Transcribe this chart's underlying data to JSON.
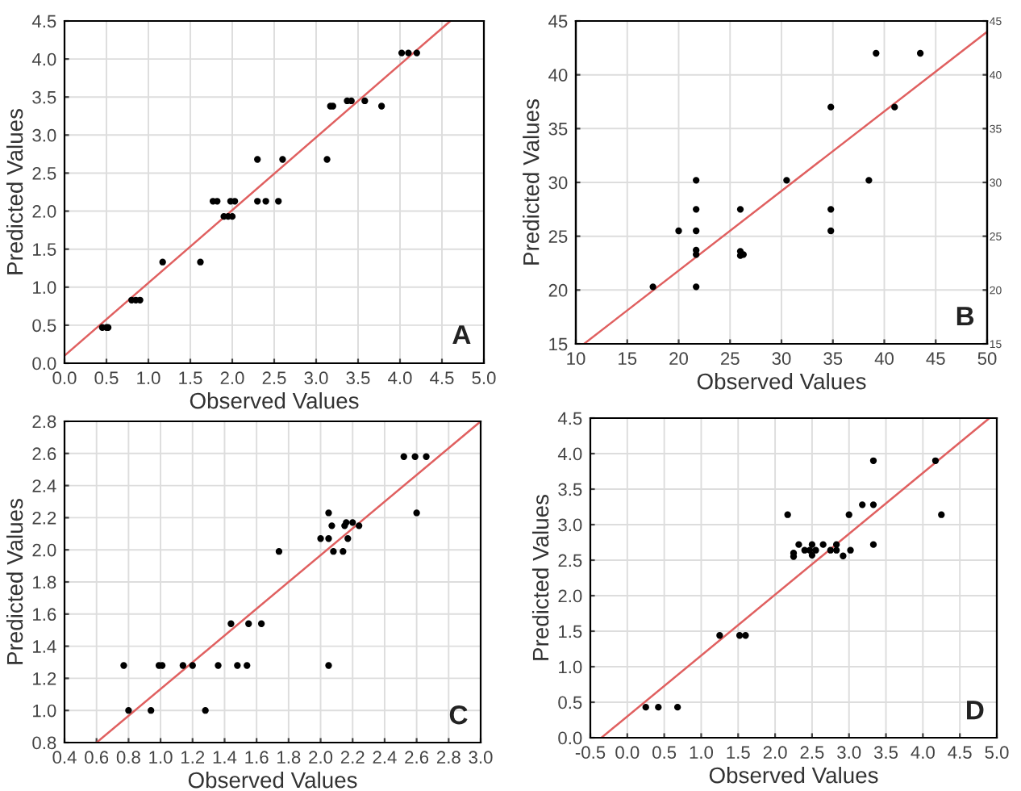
{
  "chart_data": [
    {
      "type": "scatter",
      "xlabel": "Observed Values",
      "ylabel": "Predicted Values",
      "annotations": [
        "A"
      ],
      "grid": true,
      "xlim": [
        0,
        5
      ],
      "ylim": [
        0,
        4.5
      ],
      "xticks": [
        {
          "value": 0,
          "label": "0.0"
        },
        0.5,
        {
          "value": 1,
          "label": "1.0"
        },
        1.5,
        {
          "value": 2,
          "label": "2.0"
        },
        2.5,
        {
          "value": 3,
          "label": "3.0"
        },
        3.5,
        {
          "value": 4,
          "label": "4.0"
        },
        4.5,
        {
          "value": 5,
          "label": "5.0"
        }
      ],
      "yticks": [
        {
          "value": 0,
          "label": "0.0"
        },
        0.5,
        {
          "value": 1,
          "label": "1.0"
        },
        1.5,
        {
          "value": 2,
          "label": "2.0"
        },
        2.5,
        {
          "value": 3,
          "label": "3.0"
        },
        3.5,
        {
          "value": 4,
          "label": "4.0"
        },
        4.5
      ],
      "series": [
        {
          "marker": "circle",
          "color": "#000000",
          "x": [
            0.45,
            0.5,
            0.52,
            0.8,
            0.85,
            0.9,
            1.17,
            1.62,
            1.77,
            1.82,
            1.9,
            1.95,
            2.0,
            1.98,
            2.03,
            2.3,
            2.3,
            2.4,
            2.55,
            2.6,
            3.13,
            3.17,
            3.2,
            3.37,
            3.42,
            3.58,
            3.78,
            4.02,
            4.1,
            4.2
          ],
          "values": [
            0.47,
            0.47,
            0.47,
            0.83,
            0.83,
            0.83,
            1.33,
            1.33,
            2.13,
            2.13,
            1.93,
            1.93,
            1.93,
            2.13,
            2.13,
            2.68,
            2.13,
            2.13,
            2.13,
            2.68,
            2.68,
            3.38,
            3.38,
            3.45,
            3.45,
            3.45,
            3.38,
            4.08,
            4.08,
            4.08
          ]
        },
        {
          "type": "line",
          "color": "#e06060",
          "x": [
            0,
            4.6
          ],
          "values": [
            0.1,
            4.5
          ]
        }
      ]
    },
    {
      "type": "scatter",
      "xlabel": "Observed Values",
      "ylabel": "Predicted Values",
      "annotations": [
        "B"
      ],
      "grid": true,
      "xlim": [
        10,
        50
      ],
      "ylim": [
        15,
        45
      ],
      "y2lim": [
        15,
        45
      ],
      "xticks": [
        10,
        15,
        20,
        25,
        30,
        35,
        40,
        45,
        50
      ],
      "yticks": [
        15,
        20,
        25,
        30,
        35,
        40,
        45
      ],
      "y2ticks": [
        15,
        20,
        25,
        30,
        35,
        40,
        45
      ],
      "series": [
        {
          "marker": "circle",
          "color": "#000000",
          "x": [
            17.5,
            20,
            21.7,
            21.7,
            21.7,
            21.7,
            21.7,
            21.7,
            26,
            26,
            26,
            26.3,
            30.5,
            34.8,
            34.8,
            34.8,
            38.5,
            39.2,
            41,
            43.5
          ],
          "values": [
            20.3,
            25.5,
            30.2,
            27.5,
            25.5,
            23.7,
            23.3,
            20.3,
            27.5,
            23.6,
            23.2,
            23.3,
            30.2,
            37,
            27.5,
            25.5,
            30.2,
            42,
            37,
            42
          ]
        },
        {
          "type": "line",
          "color": "#e06060",
          "x": [
            10.8,
            50
          ],
          "values": [
            15,
            44
          ]
        }
      ]
    },
    {
      "type": "scatter",
      "xlabel": "Observed Values",
      "ylabel": "Predicted Values",
      "annotations": [
        "C"
      ],
      "grid": true,
      "xlim": [
        0.4,
        3.0
      ],
      "ylim": [
        0.8,
        2.8
      ],
      "xticks": [
        0.4,
        0.6,
        0.8,
        {
          "value": 1,
          "label": "1.0"
        },
        1.2,
        1.4,
        1.6,
        1.8,
        {
          "value": 2,
          "label": "2.0"
        },
        2.2,
        2.4,
        2.6,
        2.8,
        {
          "value": 3,
          "label": "3.0"
        }
      ],
      "yticks": [
        0.8,
        {
          "value": 1,
          "label": "1.0"
        },
        1.2,
        1.4,
        1.6,
        1.8,
        {
          "value": 2,
          "label": "2.0"
        },
        2.2,
        2.4,
        2.6,
        2.8
      ],
      "series": [
        {
          "marker": "circle",
          "color": "#000000",
          "x": [
            0.77,
            0.8,
            0.94,
            0.99,
            1.01,
            1.14,
            1.2,
            1.28,
            1.36,
            1.44,
            1.48,
            1.54,
            1.55,
            1.63,
            1.74,
            2.0,
            2.05,
            2.05,
            2.07,
            2.08,
            2.05,
            2.14,
            2.15,
            2.16,
            2.17,
            2.2,
            2.24,
            2.52,
            2.59,
            2.66,
            2.6
          ],
          "values": [
            1.28,
            1.0,
            1.0,
            1.28,
            1.28,
            1.28,
            1.28,
            1.0,
            1.28,
            1.54,
            1.28,
            1.28,
            1.54,
            1.54,
            1.99,
            2.07,
            2.23,
            2.07,
            2.15,
            1.99,
            1.28,
            1.99,
            2.15,
            2.17,
            2.07,
            2.17,
            2.15,
            2.58,
            2.58,
            2.58,
            2.23
          ]
        },
        {
          "type": "line",
          "color": "#e06060",
          "x": [
            0.6,
            3.0
          ],
          "values": [
            0.8,
            2.8
          ]
        }
      ]
    },
    {
      "type": "scatter",
      "xlabel": "Observed Values",
      "ylabel": "Predicted Values",
      "annotations": [
        "D"
      ],
      "grid": true,
      "xlim": [
        -0.5,
        5
      ],
      "ylim": [
        0,
        4.5
      ],
      "xticks": [
        -0.5,
        {
          "value": 0,
          "label": "0.0"
        },
        0.5,
        {
          "value": 1,
          "label": "1.0"
        },
        1.5,
        {
          "value": 2,
          "label": "2.0"
        },
        2.5,
        {
          "value": 3,
          "label": "3.0"
        },
        3.5,
        {
          "value": 4,
          "label": "4.0"
        },
        4.5,
        {
          "value": 5,
          "label": "5.0"
        }
      ],
      "yticks": [
        {
          "value": 0,
          "label": "0.0"
        },
        0.5,
        {
          "value": 1,
          "label": "1.0"
        },
        1.5,
        {
          "value": 2,
          "label": "2.0"
        },
        2.5,
        {
          "value": 3,
          "label": "3.0"
        },
        3.5,
        {
          "value": 4,
          "label": "4.0"
        },
        4.5
      ],
      "series": [
        {
          "marker": "circle",
          "color": "#000000",
          "x": [
            0.25,
            0.42,
            0.68,
            1.25,
            1.52,
            1.6,
            2.17,
            2.25,
            2.25,
            2.32,
            2.4,
            2.47,
            2.5,
            2.5,
            2.55,
            2.65,
            2.75,
            2.83,
            2.83,
            2.92,
            3.0,
            3.02,
            3.18,
            3.33,
            3.33,
            3.33,
            4.17,
            4.25
          ],
          "values": [
            0.43,
            0.43,
            0.43,
            1.44,
            1.44,
            1.44,
            3.14,
            2.6,
            2.55,
            2.72,
            2.64,
            2.64,
            2.72,
            2.57,
            2.64,
            2.72,
            2.64,
            2.72,
            2.64,
            2.56,
            3.14,
            2.64,
            3.28,
            3.9,
            3.28,
            2.72,
            3.9,
            3.14
          ]
        },
        {
          "type": "line",
          "color": "#e06060",
          "x": [
            -0.35,
            4.9
          ],
          "values": [
            0,
            4.5
          ]
        }
      ]
    }
  ]
}
